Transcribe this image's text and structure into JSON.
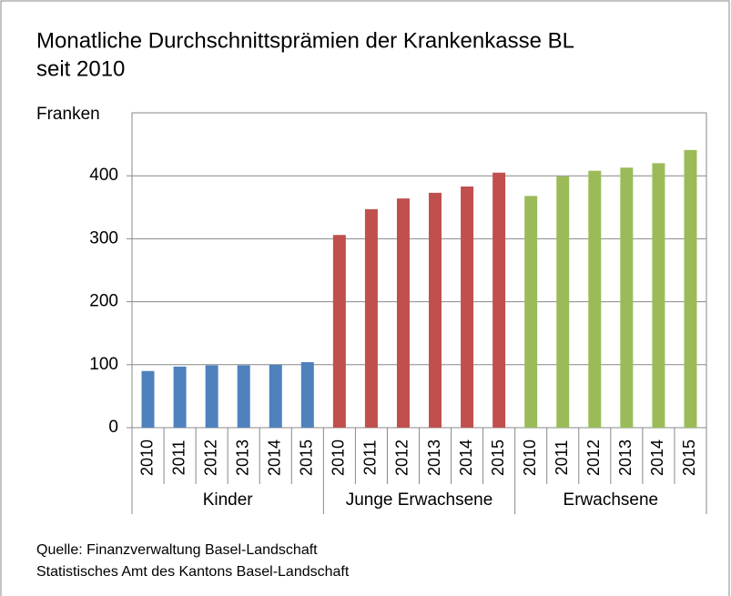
{
  "chart_data": {
    "type": "bar",
    "title": [
      "Monatliche Durchschnittsprämien der Krankenkasse BL",
      "seit 2010"
    ],
    "y_label": "Franken",
    "categories": [
      "2010",
      "2011",
      "2012",
      "2013",
      "2014",
      "2015"
    ],
    "series": [
      {
        "name": "Kinder",
        "color": "#4f81bd",
        "values": [
          90,
          97,
          99,
          99,
          100,
          104
        ]
      },
      {
        "name": "Junge Erwachsene",
        "color": "#c0504d",
        "values": [
          306,
          347,
          364,
          373,
          383,
          405
        ]
      },
      {
        "name": "Erwachsene",
        "color": "#9bbb59",
        "values": [
          368,
          399,
          408,
          413,
          420,
          441
        ]
      }
    ],
    "ylim": [
      0,
      500
    ],
    "yticks": [
      0,
      100,
      200,
      300,
      400
    ],
    "grid": true,
    "source": [
      "Quelle: Finanzverwaltung Basel-Landschaft",
      "Statistisches Amt des Kantons Basel-Landschaft"
    ]
  }
}
